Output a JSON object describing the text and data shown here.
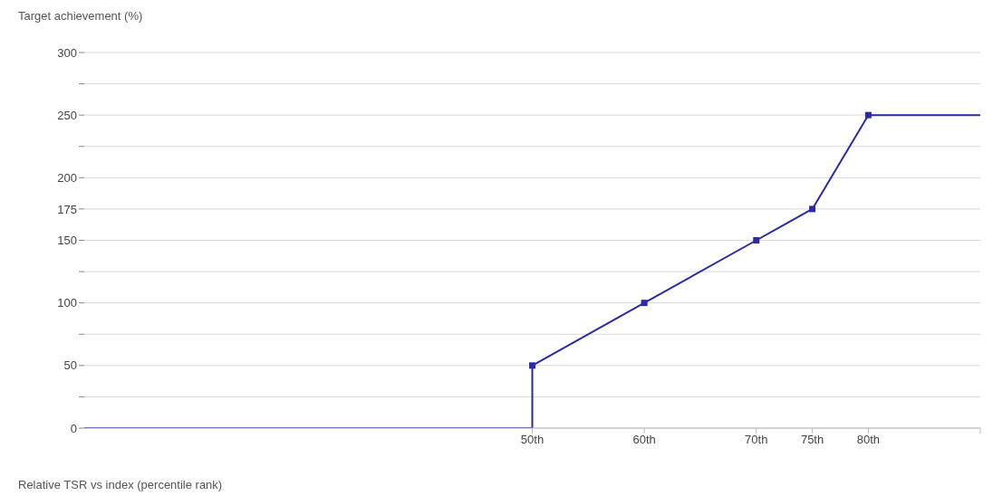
{
  "chart_data": {
    "type": "line",
    "xlabel": "Relative TSR vs index (percentile rank)",
    "ylabel": "Target achievement (%)",
    "series": [
      {
        "color": "#2a2aa8",
        "marker": "none",
        "x": [
          10,
          50,
          50,
          60,
          70,
          75,
          80,
          90
        ],
        "values": [
          0,
          0,
          50,
          100,
          150,
          175,
          250,
          250
        ]
      },
      {
        "type": "scatter",
        "color": "#2a2aa8",
        "marker": "square",
        "x": [
          50,
          60,
          70,
          75,
          80
        ],
        "values": [
          50,
          100,
          150,
          175,
          250
        ]
      }
    ],
    "xlim": [
      10,
      90
    ],
    "xticks": [
      {
        "value": 50,
        "label": "50th"
      },
      {
        "value": 60,
        "label": "60th"
      },
      {
        "value": 70,
        "label": "70th"
      },
      {
        "value": 75,
        "label": "75th"
      },
      {
        "value": 80,
        "label": "80th"
      },
      {
        "value": 90,
        "label": null
      }
    ],
    "ylim": [
      0,
      300
    ],
    "yticks": [
      0,
      {
        "value": 25,
        "label": null
      },
      50,
      {
        "value": 75,
        "label": null
      },
      100,
      {
        "value": 125,
        "label": null
      },
      150,
      175,
      200,
      {
        "value": 225,
        "label": null
      },
      250,
      {
        "value": 275,
        "label": null
      },
      300
    ],
    "grid": "y"
  }
}
